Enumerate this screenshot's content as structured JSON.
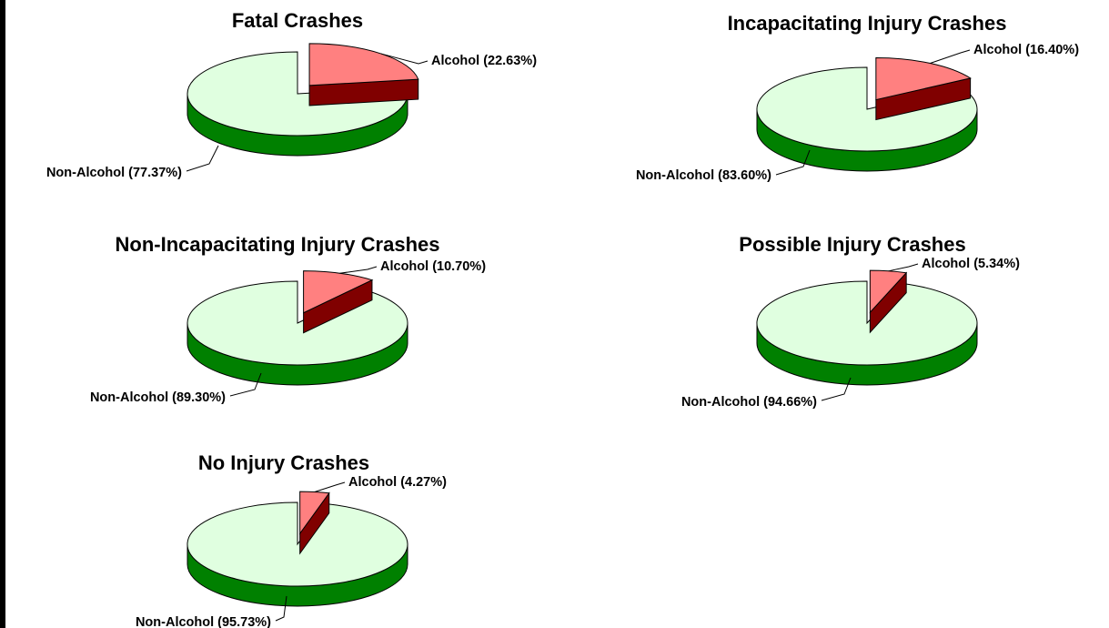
{
  "chart_data": [
    {
      "type": "pie",
      "title": "Fatal Crashes",
      "values": [
        22.63,
        77.37
      ],
      "value_labels": [
        "Alcohol (22.63%)",
        "Non-Alcohol (77.37%)"
      ],
      "colors": [
        "#ff8080",
        "#e0ffe0"
      ],
      "side_colors": [
        "#800000",
        "#008000"
      ]
    },
    {
      "type": "pie",
      "title": "Incapacitating Injury Crashes",
      "values": [
        16.4,
        83.6
      ],
      "value_labels": [
        "Alcohol (16.40%)",
        "Non-Alcohol (83.60%)"
      ],
      "colors": [
        "#ff8080",
        "#e0ffe0"
      ],
      "side_colors": [
        "#800000",
        "#008000"
      ]
    },
    {
      "type": "pie",
      "title": "Non-Incapacitating Injury Crashes",
      "values": [
        10.7,
        89.3
      ],
      "value_labels": [
        "Alcohol (10.70%)",
        "Non-Alcohol (89.30%)"
      ],
      "colors": [
        "#ff8080",
        "#e0ffe0"
      ],
      "side_colors": [
        "#800000",
        "#008000"
      ]
    },
    {
      "type": "pie",
      "title": "Possible Injury Crashes",
      "values": [
        5.34,
        94.66
      ],
      "value_labels": [
        "Alcohol (5.34%)",
        "Non-Alcohol (94.66%)"
      ],
      "colors": [
        "#ff8080",
        "#e0ffe0"
      ],
      "side_colors": [
        "#800000",
        "#008000"
      ]
    },
    {
      "type": "pie",
      "title": "No Injury Crashes",
      "values": [
        4.27,
        95.73
      ],
      "value_labels": [
        "Alcohol (4.27%)",
        "Non-Alcohol (95.73%)"
      ],
      "colors": [
        "#ff8080",
        "#e0ffe0"
      ],
      "side_colors": [
        "#800000",
        "#008000"
      ]
    }
  ]
}
